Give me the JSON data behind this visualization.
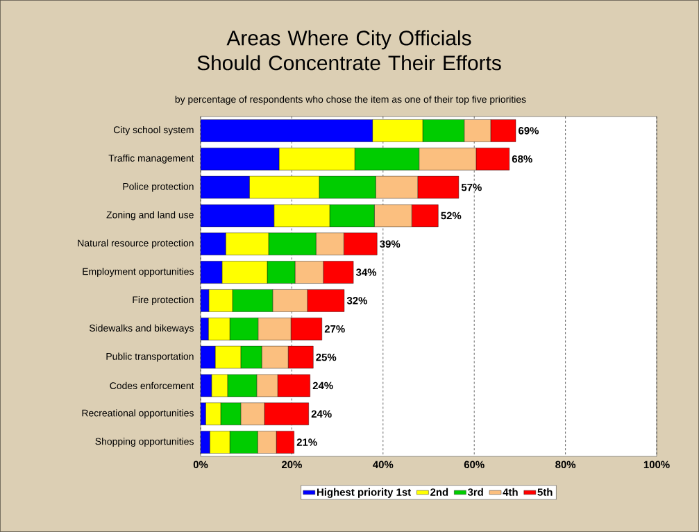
{
  "chart_data": {
    "type": "bar",
    "orientation": "horizontal",
    "stacked": true,
    "title": "Areas Where City Officials Should Concentrate Their Efforts",
    "subtitle": "by percentage of respondents who chose the item as one of their top five priorities",
    "categories": [
      "City school system",
      "Traffic management",
      "Police protection",
      "Zoning and land use",
      "Natural resource protection",
      "Employment opportunities",
      "Fire protection",
      "Sidewalks and bikeways",
      "Public transportation",
      "Codes enforcement",
      "Recreational opportunities",
      "Shopping opportunities"
    ],
    "series": [
      {
        "name": "Highest priority 1st",
        "color": "#0000ff",
        "values": [
          37.7,
          17.2,
          10.7,
          16.1,
          5.5,
          4.7,
          1.8,
          1.7,
          3.2,
          2.4,
          1.1,
          2.0
        ]
      },
      {
        "name": "2nd",
        "color": "#ffff00",
        "values": [
          11.0,
          16.6,
          15.3,
          12.2,
          9.4,
          9.9,
          5.2,
          4.7,
          5.6,
          3.5,
          3.3,
          4.4
        ]
      },
      {
        "name": "3rd",
        "color": "#00cc00",
        "values": [
          9.1,
          14.1,
          12.4,
          9.8,
          10.4,
          6.1,
          8.8,
          6.2,
          4.6,
          6.4,
          4.4,
          6.1
        ]
      },
      {
        "name": "4th",
        "color": "#fbbf7f",
        "values": [
          5.8,
          12.5,
          9.2,
          8.2,
          6.1,
          6.2,
          7.6,
          7.2,
          5.8,
          4.6,
          5.2,
          4.1
        ]
      },
      {
        "name": "5th",
        "color": "#ff0000",
        "values": [
          5.5,
          7.3,
          9.0,
          5.8,
          7.3,
          6.6,
          8.1,
          6.8,
          5.5,
          7.1,
          9.7,
          3.9
        ]
      }
    ],
    "totals": [
      "69%",
      "68%",
      "57%",
      "52%",
      "39%",
      "34%",
      "32%",
      "27%",
      "25%",
      "24%",
      "24%",
      "21%"
    ],
    "xlim": [
      0,
      100
    ],
    "xticks": [
      {
        "value": 0,
        "label": "0%"
      },
      {
        "value": 20,
        "label": "20%"
      },
      {
        "value": 40,
        "label": "40%"
      },
      {
        "value": 60,
        "label": "60%"
      },
      {
        "value": 80,
        "label": "80%"
      },
      {
        "value": 100,
        "label": "100%"
      }
    ],
    "grid": "x",
    "legend": "bottom"
  }
}
